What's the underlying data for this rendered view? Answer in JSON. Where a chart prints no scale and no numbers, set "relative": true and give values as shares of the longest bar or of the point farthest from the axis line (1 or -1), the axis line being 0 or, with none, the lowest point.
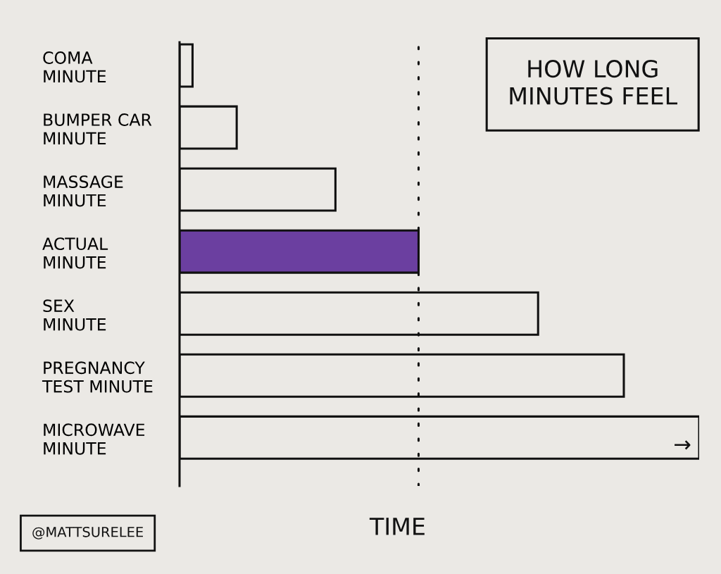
{
  "chart_data": {
    "type": "bar",
    "orientation": "horizontal",
    "relative": true,
    "title": "HOW LONG\nMINUTES FEEL",
    "xlabel": "TIME",
    "categories": [
      "COMA\nMINUTE",
      "BUMPER CAR\nMINUTE",
      "MASSAGE\nMINUTE",
      "ACTUAL\nMINUTE",
      "SEX\nMINUTE",
      "PREGNANCY\nTEST MINUTE",
      "MICROWAVE\nMINUTE"
    ],
    "values": [
      0.025,
      0.11,
      0.3,
      0.46,
      0.69,
      0.855,
      1
    ],
    "colors": [
      "#ebe9e5",
      "#ebe9e5",
      "#ebe9e5",
      "#6b3fa0",
      "#ebe9e5",
      "#ebe9e5",
      "#ebe9e5"
    ],
    "ref_lines": [
      {
        "axis": "x",
        "value": 0.46,
        "color": "#111111",
        "line_style": "dotted"
      }
    ],
    "annotations": [
      "→",
      "@MATTSURELEE"
    ],
    "grid": false,
    "legend": false
  }
}
